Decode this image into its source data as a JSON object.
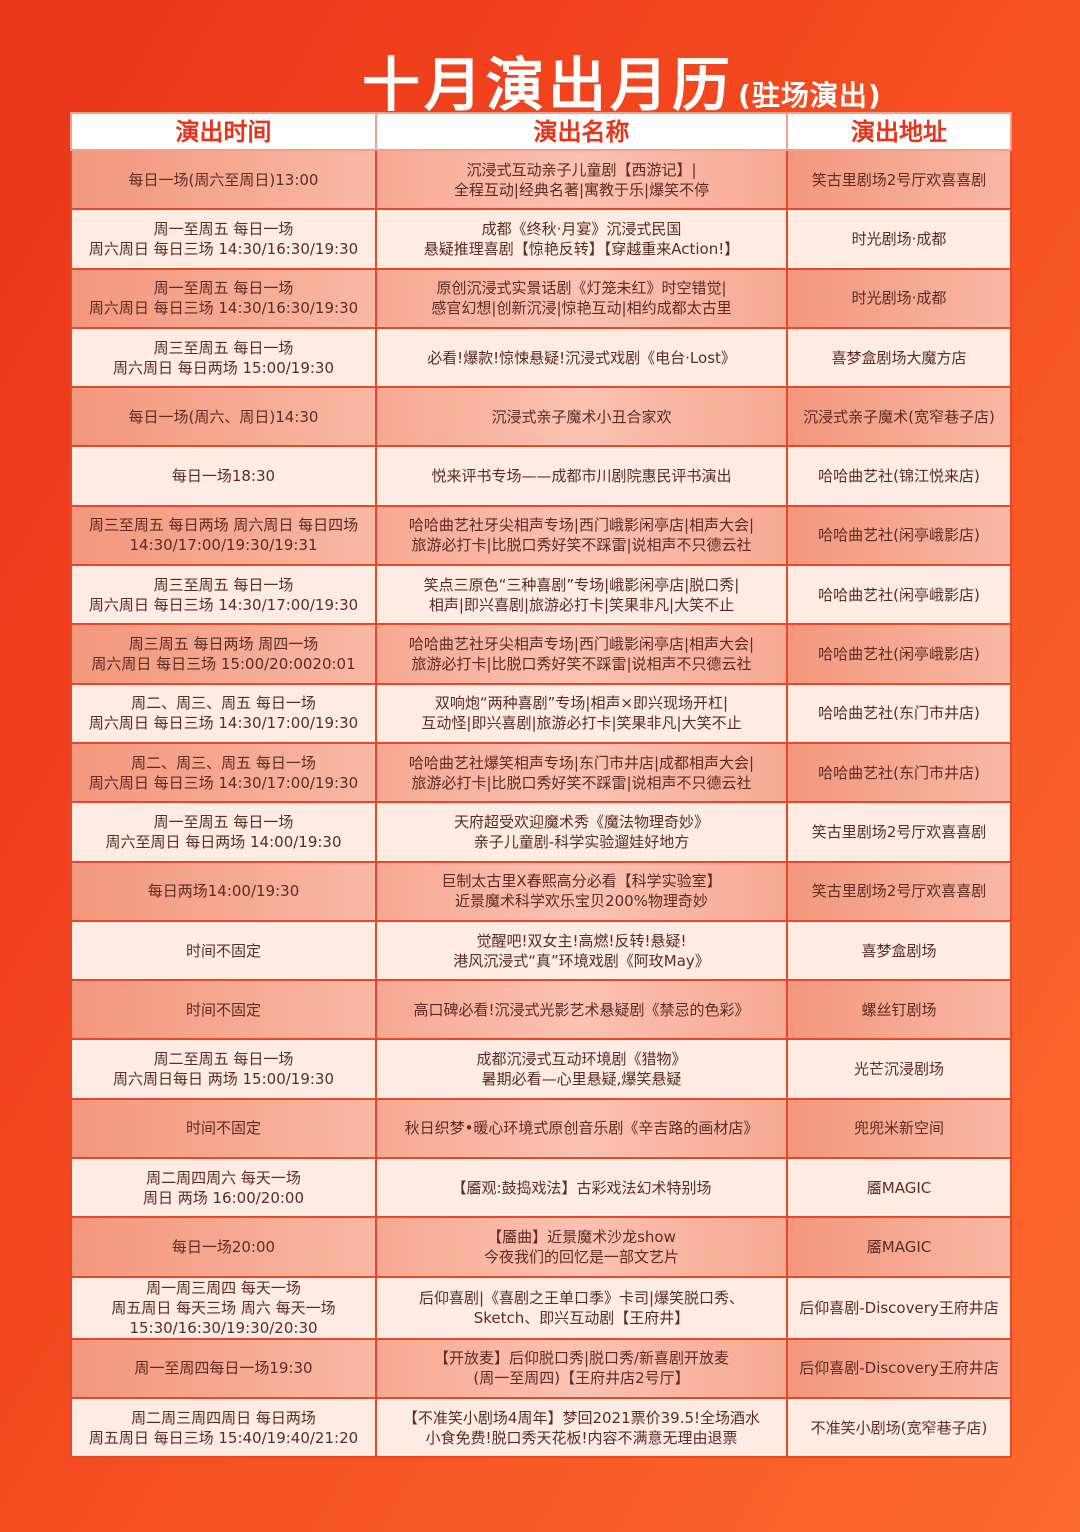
{
  "title": {
    "main": "十月演出月历",
    "sub": "(驻场演出)"
  },
  "headers": [
    "演出时间",
    "演出名称",
    "演出地址"
  ],
  "rows": [
    {
      "time": "每日一场(周六至周日)13:00",
      "name": "沉浸式互动亲子儿童剧【西游记】|\n全程互动|经典名著|寓教于乐|爆笑不停",
      "venue": "笑古里剧场2号厅欢喜喜剧"
    },
    {
      "time": "周一至周五  每日一场\n周六周日  每日三场  14:30/16:30/19:30",
      "name": "成都《终秋·月宴》沉浸式民国\n悬疑推理喜剧【惊艳反转】【穿越重来Action!】",
      "venue": "时光剧场·成都"
    },
    {
      "time": "周一至周五  每日一场\n周六周日  每日三场  14:30/16:30/19:30",
      "name": "原创沉浸式实景话剧《灯笼未红》时空错觉|\n感官幻想|创新沉浸|惊艳互动|相约成都太古里",
      "venue": "时光剧场·成都"
    },
    {
      "time": "周三至周五  每日一场\n周六周日  每日两场  15:00/19:30",
      "name": "必看!爆款!惊悚悬疑!沉浸式戏剧《电台·Lost》",
      "venue": "喜梦盒剧场大魔方店"
    },
    {
      "time": "每日一场(周六、周日)14:30",
      "name": "沉浸式亲子魔术小丑合家欢",
      "venue": "沉浸式亲子魔术(宽窄巷子店)"
    },
    {
      "time": "每日一场18:30",
      "name": "悦来评书专场——成都市川剧院惠民评书演出",
      "venue": "哈哈曲艺社(锦江悦来店)"
    },
    {
      "time": "周三至周五  每日两场  周六周日  每日四场\n14:30/17:00/19:30/19:31",
      "name": "哈哈曲艺社牙尖相声专场|西门峨影闲亭店|相声大会|\n旅游必打卡|比脱口秀好笑不踩雷|说相声不只德云社",
      "venue": "哈哈曲艺社(闲亭峨影店)"
    },
    {
      "time": "周三至周五  每日一场\n周六周日  每日三场  14:30/17:00/19:30",
      "name": "笑点三原色“三种喜剧”专场|峨影闲亭店|脱口秀|\n相声|即兴喜剧|旅游必打卡|笑果非凡|大笑不止",
      "venue": "哈哈曲艺社(闲亭峨影店)"
    },
    {
      "time": "周三周五  每日两场  周四一场\n周六周日  每日三场  15:00/20:0020:01",
      "name": "哈哈曲艺社牙尖相声专场|西门峨影闲亭店|相声大会|\n旅游必打卡|比脱口秀好笑不踩雷|说相声不只德云社",
      "venue": "哈哈曲艺社(闲亭峨影店)"
    },
    {
      "time": "周二、周三、周五  每日一场\n周六周日  每日三场  14:30/17:00/19:30",
      "name": "双响炮“两种喜剧”专场|相声×即兴现场开杠|\n互动怪|即兴喜剧|旅游必打卡|笑果非凡|大笑不止",
      "venue": "哈哈曲艺社(东门市井店)"
    },
    {
      "time": "周二、周三、周五  每日一场\n周六周日  每日三场  14:30/17:00/19:30",
      "name": "哈哈曲艺社爆笑相声专场|东门市井店|成都相声大会|\n旅游必打卡|比脱口秀好笑不踩雷|说相声不只德云社",
      "venue": "哈哈曲艺社(东门市井店)"
    },
    {
      "time": "周一至周五  每日一场\n周六至周日  每日两场   14:00/19:30",
      "name": "天府超受欢迎魔术秀《魔法物理奇妙》\n亲子儿童剧-科学实验遛娃好地方",
      "venue": "笑古里剧场2号厅欢喜喜剧"
    },
    {
      "time": "每日两场14:00/19:30",
      "name": "巨制太古里X春熙高分必看【科学实验室】\n近景魔术科学欢乐宝贝200%物理奇妙",
      "venue": "笑古里剧场2号厅欢喜喜剧"
    },
    {
      "time": "时间不固定",
      "name": "觉醒吧!双女主!高燃!反转!悬疑!\n港风沉浸式“真”环境戏剧《阿玫May》",
      "venue": "喜梦盒剧场"
    },
    {
      "time": "时间不固定",
      "name": "高口碑必看!沉浸式光影艺术悬疑剧《禁忌的色彩》",
      "venue": "螺丝钉剧场"
    },
    {
      "time": "周二至周五  每日一场\n周六周日每日  两场  15:00/19:30",
      "name": "成都沉浸式互动环境剧《猎物》\n暑期必看—心里悬疑,爆笑悬疑",
      "venue": "光芒沉浸剧场"
    },
    {
      "time": "时间不固定",
      "name": "秋日织梦•暖心环境式原创音乐剧《辛吉路的画材店》",
      "venue": "兜兜米新空间"
    },
    {
      "time": "周二周四周六  每天一场\n周日  两场  16:00/20:00",
      "name": "【靥观:鼓捣戏法】古彩戏法幻术特别场",
      "venue": "靥MAGIC"
    },
    {
      "time": "每日一场20:00",
      "name": "【靥曲】近景魔术沙龙show\n今夜我们的回忆是一部文艺片",
      "venue": "靥MAGIC"
    },
    {
      "time": "周一周三周四  每天一场\n周五周日  每天三场  周六  每天一场\n15:30/16:30/19:30/20:30",
      "name": "后仰喜剧|《喜剧之王单口季》卡司|爆笑脱口秀、\nSketch、即兴互动剧【王府井】",
      "venue": "后仰喜剧-Discovery王府井店"
    },
    {
      "time": "周一至周四每日一场19:30",
      "name": "【开放麦】后仰脱口秀|脱口秀/新喜剧开放麦\n(周一至周四)【王府井店2号厅】",
      "venue": "后仰喜剧-Discovery王府井店"
    },
    {
      "time": "周二周三周四周日  每日两场\n周五周日  每日三场  15:40/19:40/21:20",
      "name": "【不准笑小剧场4周年】梦回2021票价39.5!全场酒水\n小食免费!脱口秀天花板!内容不满意无理由退票",
      "venue": "不准笑小剧场(宽窄巷子店)"
    }
  ]
}
